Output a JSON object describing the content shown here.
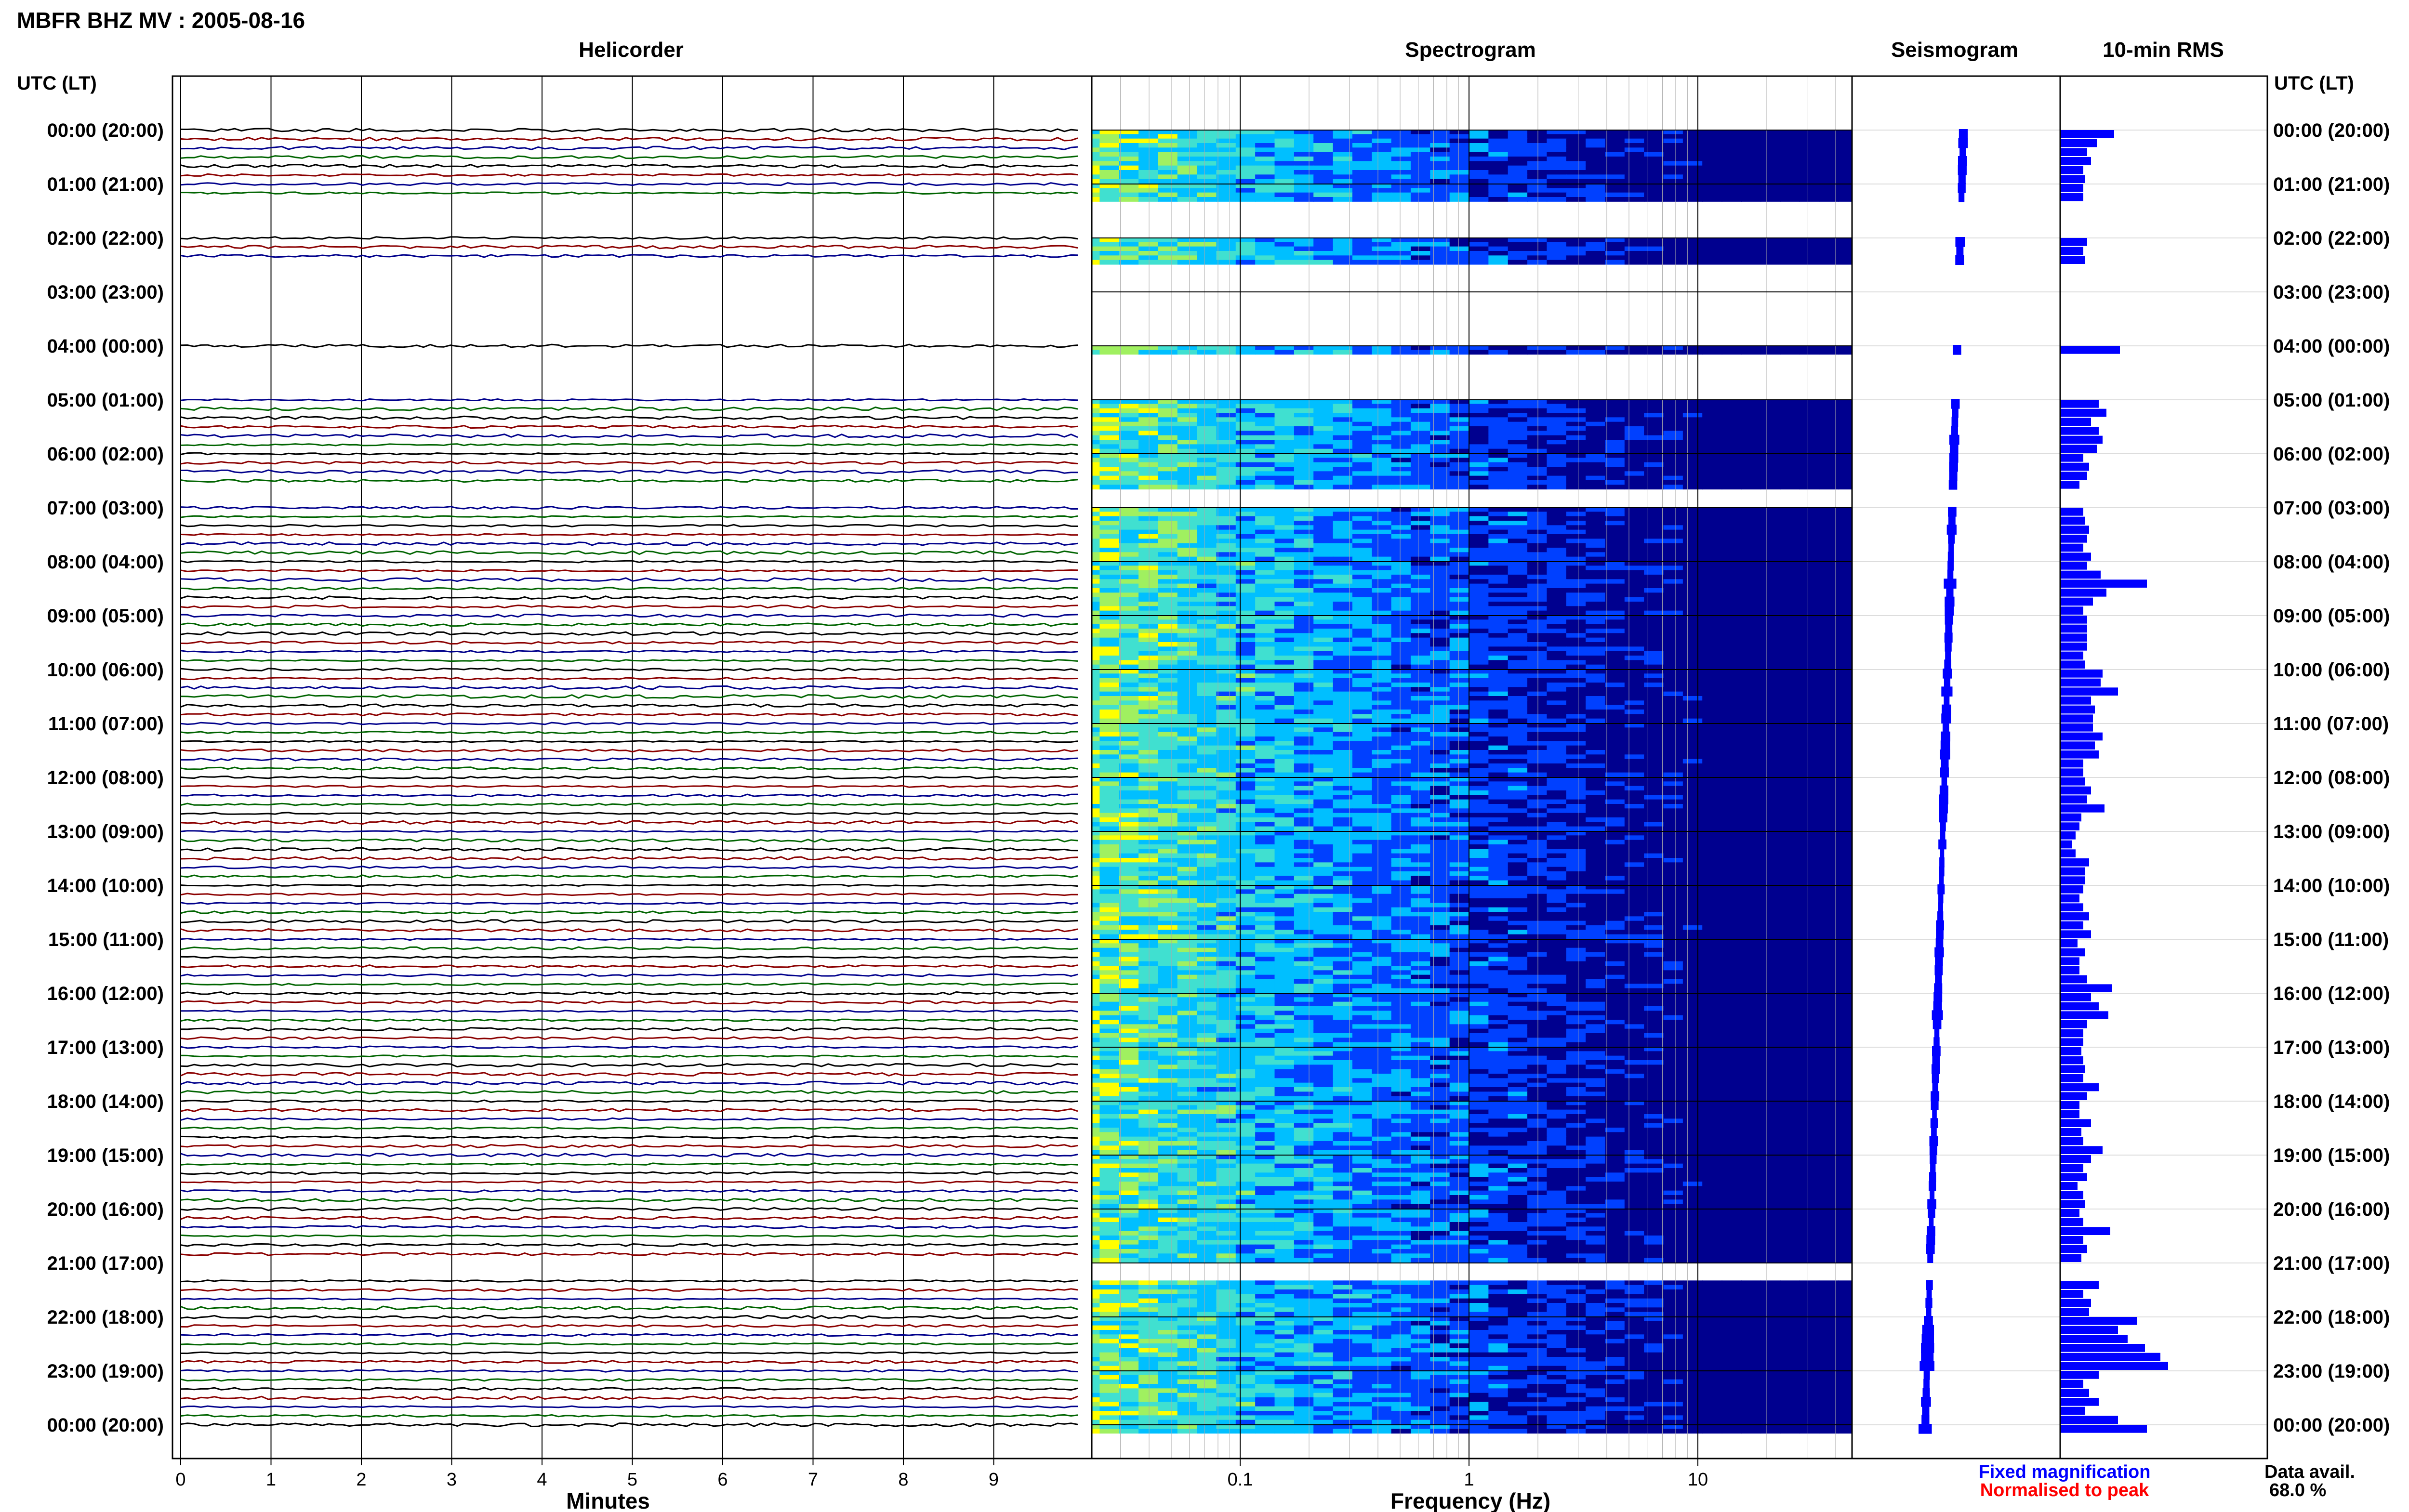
{
  "title": "MBFR BHZ MV : 2005-08-16",
  "panels": {
    "helicorder": "Helicorder",
    "spectrogram": "Spectrogram",
    "seismogram": "Seismogram",
    "rms": "10-min RMS"
  },
  "time_axis_header": "UTC (LT)",
  "footer": {
    "fixed_magnification": "Fixed magnification",
    "normalised_to_peak": "Normalised to peak",
    "data_avail_label": "Data avail.",
    "data_avail_value": "68.0 %"
  },
  "colors": {
    "trace_cycle": [
      "#000000",
      "#8b0000",
      "#00008b",
      "#006400"
    ],
    "seismogram": "#0000ff",
    "rms_bar": "#0000ff",
    "fixed_magnification": "#0000ff",
    "normalised_to_peak": "#ff0000",
    "spectro_low": "#00008f",
    "spectro_mid": "#00bfff",
    "spectro_high": "#ffff00"
  },
  "chart_data": {
    "type": "heatmap",
    "row_labels": [
      "00:00 (20:00)",
      "01:00 (21:00)",
      "02:00 (22:00)",
      "03:00 (23:00)",
      "04:00 (00:00)",
      "05:00 (01:00)",
      "06:00 (02:00)",
      "07:00 (03:00)",
      "08:00 (04:00)",
      "09:00 (05:00)",
      "10:00 (06:00)",
      "11:00 (07:00)",
      "12:00 (08:00)",
      "13:00 (09:00)",
      "14:00 (10:00)",
      "15:00 (11:00)",
      "16:00 (12:00)",
      "17:00 (13:00)",
      "18:00 (14:00)",
      "19:00 (15:00)",
      "20:00 (16:00)",
      "21:00 (17:00)",
      "22:00 (18:00)",
      "23:00 (19:00)",
      "00:00 (20:00)"
    ],
    "helicorder": {
      "xlabel": "Minutes",
      "x_ticks": [
        "0",
        "1",
        "2",
        "3",
        "4",
        "5",
        "6",
        "7",
        "8",
        "9"
      ],
      "xlim": [
        0,
        10
      ],
      "traces_per_hour": 6
    },
    "spectrogram": {
      "xlabel": "Frequency (Hz)",
      "x_scale": "log",
      "x_ticks": [
        "0.1",
        "1",
        "10"
      ],
      "xlim": [
        0.01,
        50
      ]
    },
    "rms_10min": [
      0.28,
      0.19,
      0.14,
      0.16,
      0.12,
      0.13,
      0.12,
      0.12,
      0,
      0,
      0,
      0,
      0.14,
      0.12,
      0.13,
      0,
      0,
      0,
      0,
      0,
      0,
      0,
      0,
      0,
      0.31,
      0,
      0,
      0,
      0,
      0,
      0.2,
      0.24,
      0.16,
      0.2,
      0.22,
      0.19,
      0.12,
      0.15,
      0.14,
      0.1,
      0,
      0,
      0.12,
      0.13,
      0.15,
      0.14,
      0.12,
      0.16,
      0.14,
      0.21,
      0.45,
      0.24,
      0.17,
      0.12,
      0.14,
      0.14,
      0.14,
      0.14,
      0.12,
      0.13,
      0.22,
      0.21,
      0.3,
      0.16,
      0.18,
      0.17,
      0.17,
      0.22,
      0.18,
      0.2,
      0.12,
      0.12,
      0.13,
      0.16,
      0.14,
      0.23,
      0.11,
      0.1,
      0.08,
      0.06,
      0.08,
      0.15,
      0.13,
      0.13,
      0.12,
      0.1,
      0.12,
      0.15,
      0.12,
      0.16,
      0.09,
      0.13,
      0.1,
      0.1,
      0.14,
      0.27,
      0.16,
      0.2,
      0.25,
      0.14,
      0.12,
      0.12,
      0.11,
      0.12,
      0.13,
      0.12,
      0.2,
      0.14,
      0.1,
      0.1,
      0.16,
      0.11,
      0.12,
      0.22,
      0.16,
      0.12,
      0.14,
      0.09,
      0.12,
      0.13,
      0.1,
      0.12,
      0.26,
      0.12,
      0.14,
      0.11,
      0,
      0,
      0.2,
      0.12,
      0.16,
      0.15,
      0.4,
      0.3,
      0.35,
      0.44,
      0.52,
      0.56,
      0.2,
      0.12,
      0.15,
      0.2,
      0.13,
      0.3,
      0.45,
      0,
      0,
      0,
      0,
      0
    ]
  }
}
